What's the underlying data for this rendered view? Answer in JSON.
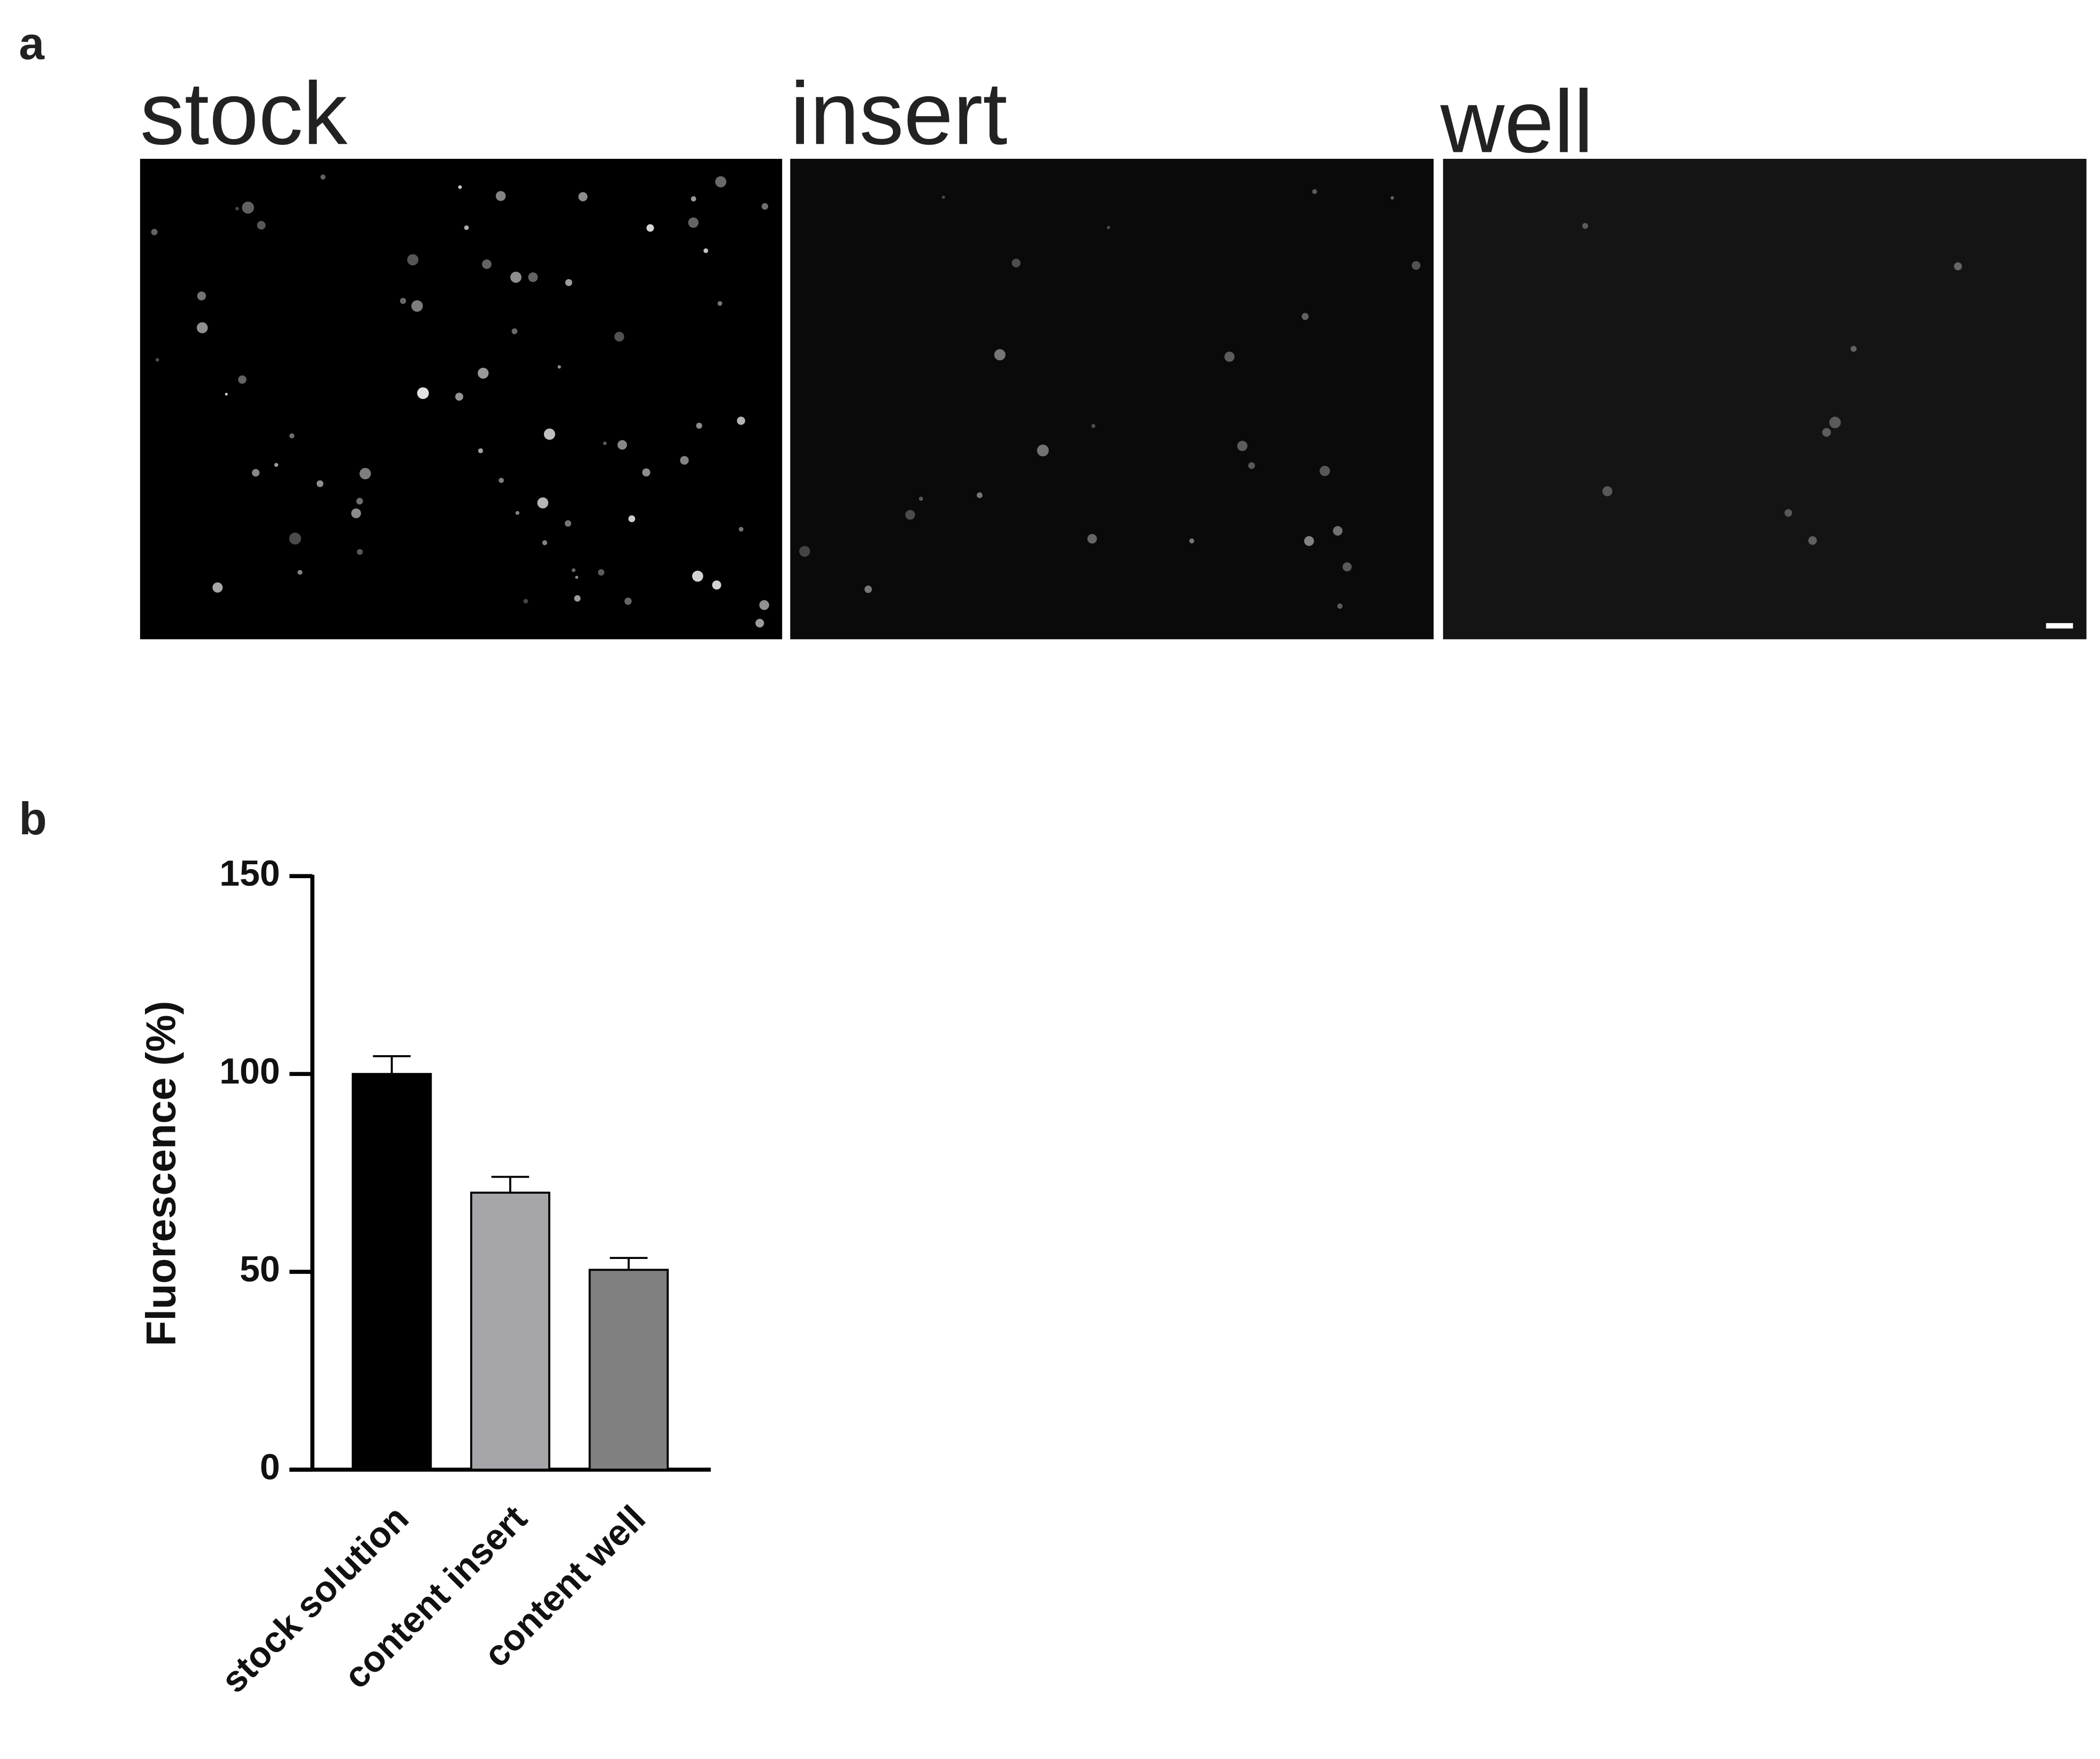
{
  "panel_labels": [
    "a",
    "b"
  ],
  "image_titles": [
    "stock",
    "insert",
    "well"
  ],
  "chart_data": {
    "type": "bar",
    "y_label": "Fluorescence (%)",
    "categories": [
      "stock solution",
      "content insert",
      "content well"
    ],
    "values": [
      100,
      70,
      50.5
    ],
    "errors": [
      4.5,
      4,
      3
    ],
    "colors": [
      "#000000",
      "#a5a5aa",
      "#808080"
    ],
    "ylim": [
      0,
      150
    ],
    "yticks": [
      0,
      50,
      100,
      150
    ]
  }
}
